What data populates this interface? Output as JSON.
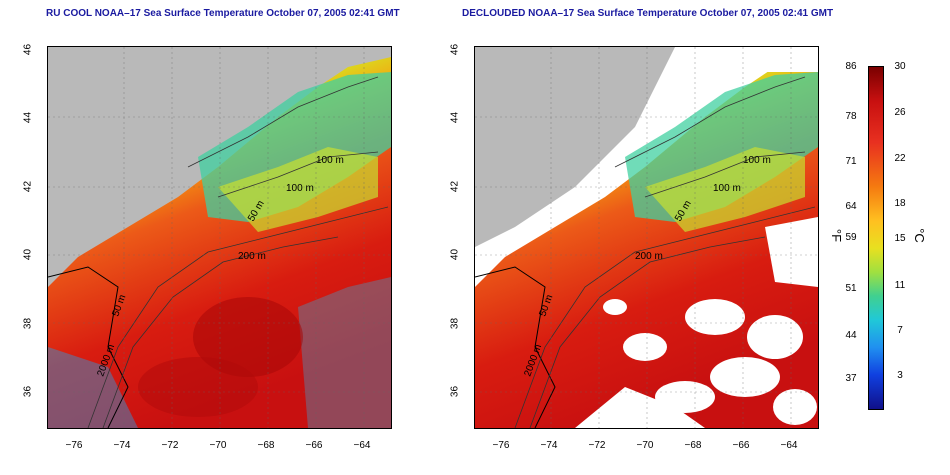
{
  "left_panel": {
    "title": "RU COOL NOAA–17 Sea Surface Temperature October 07, 2005 02:41 GMT",
    "contours": [
      "100 m",
      "100 m",
      "50 m",
      "200 m",
      "50 m",
      "2000 m"
    ]
  },
  "right_panel": {
    "title": "DECLOUDED NOAA–17 Sea Surface Temperature October 07, 2005 02:41 GMT",
    "contours": [
      "100 m",
      "100 m",
      "50 m",
      "200 m",
      "50 m",
      "2000 m"
    ]
  },
  "axes": {
    "y_ticks": [
      "46",
      "44",
      "42",
      "40",
      "38",
      "36"
    ],
    "x_ticks": [
      "−76",
      "−74",
      "−72",
      "−70",
      "−68",
      "−66",
      "−64"
    ]
  },
  "colorbar": {
    "f_ticks": [
      "86",
      "78",
      "71",
      "64",
      "59",
      "51",
      "44",
      "37"
    ],
    "c_ticks": [
      "30",
      "26",
      "22",
      "18",
      "15",
      "11",
      "7",
      "3"
    ],
    "unit_f": "°F",
    "unit_c": "°C"
  },
  "colors": {
    "land": "#b9b9b9",
    "warm": "#d81c10",
    "cool": "#30c8c8",
    "title": "#1a1aa0"
  }
}
